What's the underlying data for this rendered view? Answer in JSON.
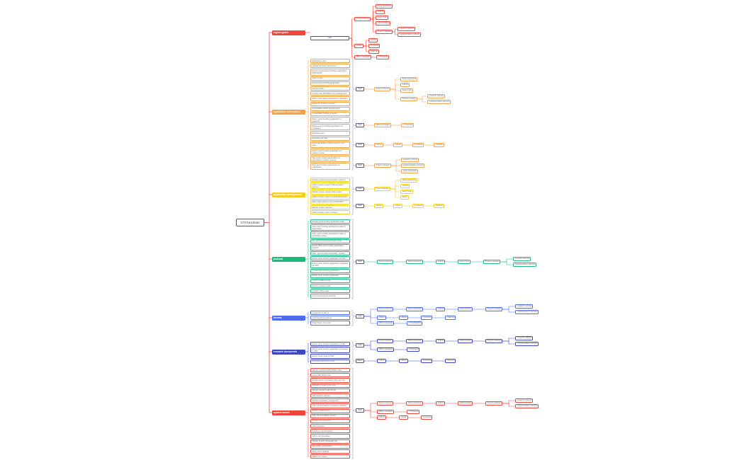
{
  "root": {
    "label": "CTI functions"
  },
  "sections": [
    {
      "label": "login/register",
      "color": "#f0453a",
      "features": [],
      "groups": [
        {
          "label": "User",
          "children": [
            {
              "label": "Project partners",
              "children": [
                {
                  "label": "Alpha Applicants"
                },
                {
                  "label": "Authors"
                },
                {
                  "label": "Super User"
                },
                {
                  "label": "Administrators"
                },
                {
                  "label": "Project manager",
                  "children": [
                    {
                      "label": "research partners"
                    },
                    {
                      "label": "implementation partners"
                    }
                  ]
                }
              ]
            },
            {
              "label": "referee",
              "children": [
                {
                  "label": "referee"
                },
                {
                  "label": "co-referee"
                },
                {
                  "label": "chairman"
                }
              ]
            },
            {
              "label": "Office managers",
              "children": [
                {
                  "label": "CTI Experts"
                }
              ]
            }
          ]
        }
      ]
    },
    {
      "label": "application information",
      "color": "#f5a14a",
      "features": [
        "Elaborate a topic",
        "Upload sub topic attachment",
        "Submit external grant funding application (PROSINO)",
        "Save a topic",
        "Submit grant funding application",
        "Format check",
        "Confirm sub-PROSINO topic assignment",
        "Return incomplete application to applicant",
        "Elaborate funding proposal",
        "Consolidate further requirements",
        "Consolidate funding proposal",
        "Return grant funding application to applicant",
        "Release grant funding application for evaluation",
        "Evaluate topic",
        "Evaluate sub topic",
        "Elaborate further requirements for sub topic",
        "Return grant funding application for referee review",
        "Sign grant funding application for approval/committee meeting",
        "Sign grant funding application for submission"
      ],
      "groups": [
        {
          "label": "User",
          "children": [
            {
              "label": "Project partners",
              "children": [
                {
                  "label": "Alpha Applicants"
                },
                {
                  "label": "Authors"
                },
                {
                  "label": "Super User"
                },
                {
                  "label": "Project manager",
                  "children": [
                    {
                      "label": "research partners"
                    },
                    {
                      "label": "implementation partners"
                    }
                  ]
                }
              ]
            }
          ]
        },
        {
          "label": "User",
          "children": [
            {
              "label": "Office managers",
              "children": [
                {
                  "label": "CTI Experts"
                }
              ]
            }
          ]
        },
        {
          "label": "User",
          "children": [
            {
              "label": "referee",
              "children": [
                {
                  "label": "referee",
                  "children": [
                    {
                      "label": "co-referee",
                      "children": [
                        {
                          "label": "chairman"
                        }
                      ]
                    }
                  ]
                }
              ]
            }
          ]
        },
        {
          "label": "User",
          "children": [
            {
              "label": "Project manager",
              "children": [
                {
                  "label": "research partners"
                },
                {
                  "label": "implementation partners"
                },
                {
                  "label": "Alpha Applicants"
                }
              ]
            }
          ]
        }
      ]
    },
    {
      "label": "application management",
      "color": "#f2cf1d",
      "features": [
        "Display project implementation partners",
        "Add/complete project implementation partners",
        "Display project research/discussion",
        "Add/complete project research/discussion",
        "Map project partner with a PROSINO",
        "Display project referees",
        "Add/complete project referees"
      ],
      "groups": [
        {
          "label": "Users",
          "children": [
            {
              "label": "Project partners",
              "children": [
                {
                  "label": "Alpha Applicants"
                },
                {
                  "label": "Authors"
                },
                {
                  "label": "Super User"
                },
                {
                  "label": "Admin"
                }
              ]
            }
          ]
        },
        {
          "label": "User",
          "children": [
            {
              "label": "referee",
              "children": [
                {
                  "label": "referee",
                  "children": [
                    {
                      "label": "co-referee",
                      "children": [
                        {
                          "label": "chairman"
                        }
                      ]
                    }
                  ]
                }
              ]
            }
          ]
        }
      ]
    },
    {
      "label": "podcast",
      "color": "#1db97a",
      "features": [
        "Display grant funding application table",
        "Filter grant funding applications table by field ranker",
        "Filter grant funding applications table by application status",
        "Sort grant funding application table",
        "Export table grant funding application revision",
        "Open grant funding application revision",
        "Export grant funding application as PDF",
        "Export grant funding application evaluation as PDF",
        "Create grant funding application",
        "Delete grant funding application",
        "Switch to offline mode",
        "Switch to online mode",
        "Unopen offline page",
        "Send link assigned with link"
      ],
      "groups": [
        {
          "label": "User",
          "children": [
            {
              "label": "Project partners",
              "children": [
                {
                  "label": "Alpha Applicants",
                  "children": [
                    {
                      "label": "Authors",
                      "children": [
                        {
                          "label": "Super User",
                          "children": [
                            {
                              "label": "Project manager",
                              "children": [
                                {
                                  "label": "research partners"
                                },
                                {
                                  "label": "implementation partners"
                                }
                              ]
                            }
                          ]
                        }
                      ]
                    }
                  ]
                }
              ]
            }
          ]
        }
      ]
    },
    {
      "label": "forums",
      "color": "#4f6bf0",
      "features": [
        "Create forum theme",
        "Comment forum theme",
        "Reply forum comment"
      ],
      "groups": [
        {
          "label": "Users",
          "children": [
            {
              "label": "Project partners",
              "children": [
                {
                  "label": "Alpha Applicants",
                  "children": [
                    {
                      "label": "Authors",
                      "children": [
                        {
                          "label": "Administrators",
                          "children": [
                            {
                              "label": "Project manager",
                              "children": [
                                {
                                  "label": "research partners"
                                },
                                {
                                  "label": "implementation partners"
                                }
                              ]
                            }
                          ]
                        }
                      ]
                    }
                  ]
                }
              ]
            },
            {
              "label": "referee",
              "children": [
                {
                  "label": "referee",
                  "children": [
                    {
                      "label": "co-referee",
                      "children": [
                        {
                          "label": "chairman"
                        }
                      ]
                    }
                  ]
                }
              ]
            },
            {
              "label": "Office managers",
              "children": [
                {
                  "label": "CTI EXPERTS"
                }
              ]
            }
          ]
        }
      ]
    },
    {
      "label": "research documents",
      "color": "#3e46c0",
      "features": [
        "Export grant funding application to PDF",
        "Export grant funding application evaluation to PDF",
        "Export forum topic to PDF",
        "Generate and send e-mail"
      ],
      "groups": [
        {
          "label": "Users",
          "children": [
            {
              "label": "Project partners",
              "children": [
                {
                  "label": "Alpha Applicants",
                  "children": [
                    {
                      "label": "Authors",
                      "children": [
                        {
                          "label": "Administrators",
                          "children": [
                            {
                              "label": "Project manager",
                              "children": [
                                {
                                  "label": "research partners"
                                },
                                {
                                  "label": "implementation partners"
                                }
                              ]
                            }
                          ]
                        }
                      ]
                    }
                  ]
                }
              ]
            },
            {
              "label": "Office managers",
              "children": [
                {
                  "label": "CTI Experts"
                }
              ]
            }
          ]
        },
        {
          "label": "Batch",
          "children": [
            {
              "label": "referee",
              "children": [
                {
                  "label": "referee",
                  "children": [
                    {
                      "label": "co-referee",
                      "children": [
                        {
                          "label": "chairman"
                        }
                      ]
                    }
                  ]
                }
              ]
            }
          ]
        }
      ]
    },
    {
      "label": "system admin",
      "color": "#f0453a",
      "features": [
        "Display registered PROSINO users",
        "Active PROSINO user",
        "Display items of company size type list",
        "Add/edit company size type",
        "Display research partner list",
        "Add research partner",
        "Display consortium member list",
        "Add, edit and delete consortium member",
        "Display positions list",
        "Add, edit and delete position",
        "Display instruction list",
        "Add instruction",
        "Display e-mail templates",
        "Add e-mail templates",
        "Display system parameter list",
        "Edit system parameters",
        "Show CTI coach list",
        "Match CTI coach"
      ],
      "groups": [
        {
          "label": "User",
          "children": [
            {
              "label": "Project partners",
              "children": [
                {
                  "label": "Alpha Applicants",
                  "children": [
                    {
                      "label": "Authors",
                      "children": [
                        {
                          "label": "Administrators",
                          "children": [
                            {
                              "label": "Project manager",
                              "children": [
                                {
                                  "label": "research partners"
                                },
                                {
                                  "label": "implementation partners"
                                }
                              ]
                            }
                          ]
                        }
                      ]
                    }
                  ]
                }
              ]
            },
            {
              "label": "Office managers",
              "children": [
                {
                  "label": "CTI Experts"
                }
              ]
            },
            {
              "label": "referee",
              "children": [
                {
                  "label": "referee",
                  "children": [
                    {
                      "label": "co-referee"
                    }
                  ]
                }
              ]
            }
          ]
        }
      ]
    }
  ]
}
